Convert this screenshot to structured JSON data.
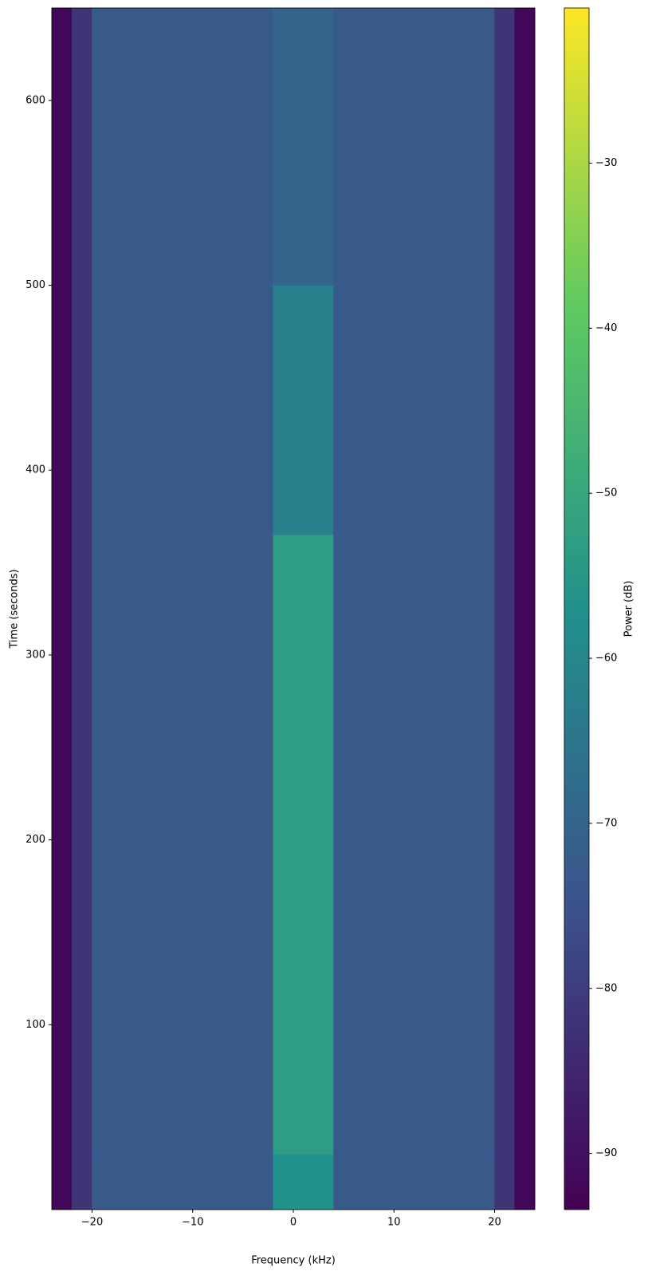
{
  "chart_data": {
    "type": "heatmap",
    "xlabel": "Frequency (kHz)",
    "ylabel": "Time (seconds)",
    "colorbar_label": "Power (dB)",
    "colormap": "viridis",
    "xlim": [
      -24,
      24
    ],
    "ylim": [
      0,
      650
    ],
    "clim": [
      -93.4,
      -20.6
    ],
    "xticks": [
      {
        "value": -20,
        "label": "−20"
      },
      {
        "value": -10,
        "label": "−10"
      },
      0,
      10,
      20
    ],
    "yticks": [
      100,
      200,
      300,
      400,
      500,
      600
    ],
    "cticks": [
      {
        "value": -90,
        "label": "−90"
      },
      {
        "value": -80,
        "label": "−80"
      },
      {
        "value": -70,
        "label": "−70"
      },
      {
        "value": -60,
        "label": "−60"
      },
      {
        "value": -50,
        "label": "−50"
      },
      {
        "value": -40,
        "label": "−40"
      },
      {
        "value": -30,
        "label": "−30"
      }
    ],
    "x_edges": [
      -24,
      -22,
      -20,
      -2,
      4,
      20,
      22,
      24
    ],
    "y_edges": [
      0,
      30,
      365,
      500,
      650
    ],
    "z": [
      [
        -92,
        -82,
        -73,
        -57,
        -73,
        -82,
        -92
      ],
      [
        -92,
        -82,
        -73,
        -53,
        -73,
        -82,
        -92
      ],
      [
        -92,
        -82,
        -73,
        -62,
        -73,
        -82,
        -92
      ],
      [
        -92,
        -82,
        -73,
        -70,
        -73,
        -82,
        -92
      ]
    ]
  }
}
